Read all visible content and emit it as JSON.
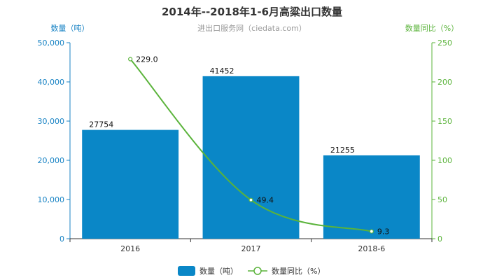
{
  "chart_data": {
    "type": "bar",
    "title": "2014年--2018年1-6月高粱出口数量",
    "subtitle": "进出口服务网（ciedata.com）",
    "categories": [
      "2016",
      "2017",
      "2018-6"
    ],
    "y_left": {
      "label": "数量（吨）",
      "ylim": [
        0,
        50000
      ],
      "ticks": [
        "0",
        "10,000",
        "20,000",
        "30,000",
        "40,000",
        "50,000"
      ],
      "tick_values": [
        0,
        10000,
        20000,
        30000,
        40000,
        50000
      ]
    },
    "y_right": {
      "label": "数量同比（%）",
      "ylim": [
        0,
        250
      ],
      "ticks": [
        "0",
        "50",
        "100",
        "150",
        "200",
        "250"
      ],
      "tick_values": [
        0,
        50,
        100,
        150,
        200,
        250
      ]
    },
    "series": [
      {
        "name": "数量（吨）",
        "type": "bar",
        "axis": "left",
        "color": "#0a87c7",
        "values": [
          27754,
          41452,
          21255
        ],
        "labels": [
          "27754",
          "41452",
          "21255"
        ]
      },
      {
        "name": "数量同比（%）",
        "type": "line",
        "axis": "right",
        "color": "#5ab33a",
        "values": [
          229.0,
          49.4,
          9.3
        ],
        "labels": [
          "229.0",
          "49.4",
          "9.3"
        ]
      }
    ],
    "grid": false,
    "legend_position": "bottom-center"
  }
}
